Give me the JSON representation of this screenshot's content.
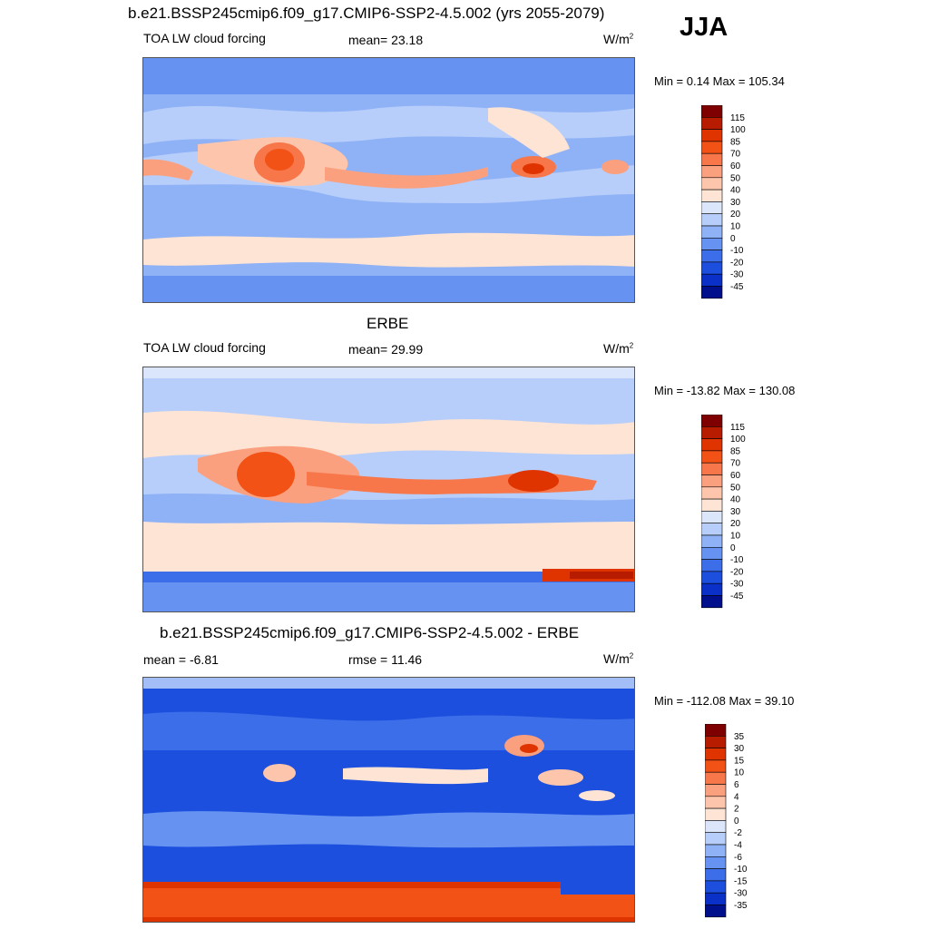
{
  "season": "JJA",
  "colorbar_a": {
    "labels": [
      "115",
      "100",
      "85",
      "70",
      "60",
      "50",
      "40",
      "30",
      "20",
      "10",
      "0",
      "-10",
      "-20",
      "-30",
      "-45"
    ],
    "colors": [
      "#7f0000",
      "#b71c00",
      "#e03400",
      "#f25216",
      "#f7764a",
      "#fba07e",
      "#fdc6ac",
      "#fde4d4",
      "#dbe6fb",
      "#b7cefa",
      "#8fb1f6",
      "#6693f1",
      "#3b6ee8",
      "#1d4fde",
      "#0a30c8",
      "#000f8c"
    ]
  },
  "colorbar_b": {
    "labels": [
      "35",
      "30",
      "15",
      "10",
      "6",
      "4",
      "2",
      "0",
      "-2",
      "-4",
      "-6",
      "-10",
      "-15",
      "-30",
      "-35"
    ],
    "colors": [
      "#7f0000",
      "#b71c00",
      "#e03400",
      "#f25216",
      "#f7764a",
      "#fba07e",
      "#fdc6ac",
      "#fde4d4",
      "#dbe6fb",
      "#b7cefa",
      "#8fb1f6",
      "#6693f1",
      "#3b6ee8",
      "#1d4fde",
      "#0a30c8",
      "#000f8c"
    ]
  },
  "panels": [
    {
      "title": "b.e21.BSSP245cmip6.f09_g17.CMIP6-SSP2-4.5.002 (yrs 2055-2079)",
      "left_text": "TOA LW cloud forcing",
      "center_text": "mean=  23.18",
      "units": "W/m",
      "units_exp": "2",
      "minmax": "Min =   0.14 Max = 105.34"
    },
    {
      "title": "ERBE",
      "left_text": "TOA LW cloud forcing",
      "center_text": "mean=  29.99",
      "units": "W/m",
      "units_exp": "2",
      "minmax": "Min = -13.82 Max = 130.08"
    },
    {
      "title": "b.e21.BSSP245cmip6.f09_g17.CMIP6-SSP2-4.5.002 - ERBE",
      "left_text": "mean =  -6.81",
      "center_text": "rmse =  11.46",
      "units": "W/m",
      "units_exp": "2",
      "minmax": "Min = -112.08 Max =  39.10"
    }
  ]
}
